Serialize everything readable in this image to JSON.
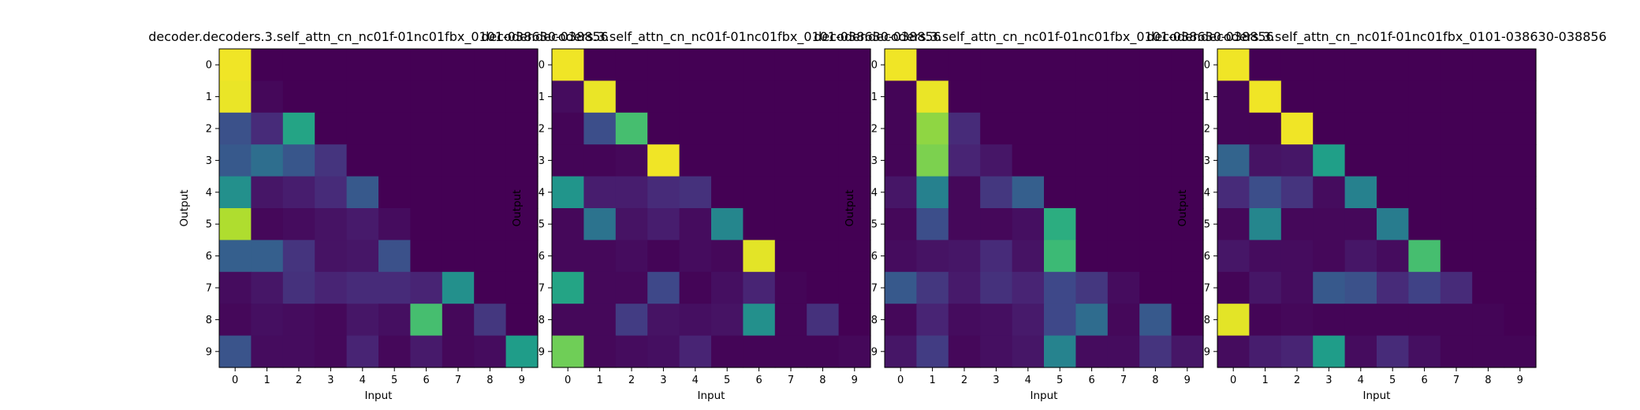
{
  "figure": {
    "background": "#ffffff"
  },
  "colormap": {
    "name": "viridis",
    "stops": [
      "#440154",
      "#482878",
      "#3e4989",
      "#31688e",
      "#26828e",
      "#1f9e89",
      "#35b779",
      "#6ece58",
      "#b5de2b",
      "#fde725"
    ]
  },
  "chart_data": [
    {
      "type": "heatmap",
      "title": "decoder.decoders.3.self_attn_cn_nc01f-01nc01fbx_0101-038630-038856",
      "xlabel": "Input",
      "ylabel": "Output",
      "x_ticks": [
        "0",
        "1",
        "2",
        "3",
        "4",
        "5",
        "6",
        "7",
        "8",
        "9"
      ],
      "y_ticks": [
        "0",
        "1",
        "2",
        "3",
        "4",
        "5",
        "6",
        "7",
        "8",
        "9"
      ],
      "matrix": [
        [
          0.98,
          0,
          0,
          0,
          0,
          0,
          0,
          0,
          0,
          0
        ],
        [
          0.97,
          0.02,
          0,
          0,
          0,
          0,
          0,
          0,
          0,
          0
        ],
        [
          0.25,
          0.12,
          0.58,
          0,
          0,
          0,
          0,
          0,
          0,
          0
        ],
        [
          0.28,
          0.36,
          0.27,
          0.15,
          0,
          0,
          0,
          0,
          0,
          0
        ],
        [
          0.5,
          0.06,
          0.08,
          0.12,
          0.28,
          0,
          0,
          0,
          0,
          0
        ],
        [
          0.88,
          0.02,
          0.03,
          0.05,
          0.07,
          0.03,
          0,
          0,
          0,
          0
        ],
        [
          0.3,
          0.3,
          0.15,
          0.05,
          0.06,
          0.25,
          0,
          0,
          0,
          0
        ],
        [
          0.03,
          0.06,
          0.14,
          0.1,
          0.12,
          0.12,
          0.1,
          0.5,
          0,
          0
        ],
        [
          0.02,
          0.04,
          0.03,
          0.02,
          0.06,
          0.04,
          0.7,
          0.02,
          0.16,
          0
        ],
        [
          0.26,
          0.03,
          0.03,
          0.02,
          0.1,
          0.02,
          0.07,
          0.02,
          0.03,
          0.55
        ]
      ]
    },
    {
      "type": "heatmap",
      "title": "decoder.decoders.3.self_attn_cn_nc01f-01nc01fbx_0101-038630-038856",
      "xlabel": "Input",
      "ylabel": "Output",
      "x_ticks": [
        "0",
        "1",
        "2",
        "3",
        "4",
        "5",
        "6",
        "7",
        "8",
        "9"
      ],
      "y_ticks": [
        "0",
        "1",
        "2",
        "3",
        "4",
        "5",
        "6",
        "7",
        "8",
        "9"
      ],
      "matrix": [
        [
          0.98,
          0,
          0,
          0,
          0,
          0,
          0,
          0,
          0,
          0
        ],
        [
          0.03,
          0.97,
          0,
          0,
          0,
          0,
          0,
          0,
          0,
          0
        ],
        [
          0.01,
          0.24,
          0.7,
          0,
          0,
          0,
          0,
          0,
          0,
          0
        ],
        [
          0.01,
          0.01,
          0.02,
          0.98,
          0,
          0,
          0,
          0,
          0,
          0
        ],
        [
          0.52,
          0.08,
          0.08,
          0.12,
          0.14,
          0,
          0,
          0,
          0,
          0
        ],
        [
          0.02,
          0.38,
          0.05,
          0.08,
          0.03,
          0.46,
          0,
          0,
          0,
          0
        ],
        [
          0.02,
          0.02,
          0.03,
          0.01,
          0.03,
          0.02,
          0.96,
          0,
          0,
          0
        ],
        [
          0.58,
          0.02,
          0.02,
          0.22,
          0.01,
          0.04,
          0.1,
          0.01,
          0,
          0
        ],
        [
          0.02,
          0.02,
          0.18,
          0.05,
          0.04,
          0.05,
          0.5,
          0.01,
          0.14,
          0
        ],
        [
          0.78,
          0.02,
          0.03,
          0.04,
          0.1,
          0.01,
          0.01,
          0.01,
          0.01,
          0.02
        ]
      ]
    },
    {
      "type": "heatmap",
      "title": "decoder.decoders.3.self_attn_cn_nc01f-01nc01fbx_0101-038630-038856",
      "xlabel": "Input",
      "ylabel": "Output",
      "x_ticks": [
        "0",
        "1",
        "2",
        "3",
        "4",
        "5",
        "6",
        "7",
        "8",
        "9"
      ],
      "y_ticks": [
        "0",
        "1",
        "2",
        "3",
        "4",
        "5",
        "6",
        "7",
        "8",
        "9"
      ],
      "matrix": [
        [
          0.98,
          0,
          0,
          0,
          0,
          0,
          0,
          0,
          0,
          0
        ],
        [
          0.01,
          0.97,
          0,
          0,
          0,
          0,
          0,
          0,
          0,
          0
        ],
        [
          0.01,
          0.83,
          0.12,
          0,
          0,
          0,
          0,
          0,
          0,
          0
        ],
        [
          0.01,
          0.8,
          0.1,
          0.06,
          0,
          0,
          0,
          0,
          0,
          0
        ],
        [
          0.06,
          0.44,
          0.02,
          0.16,
          0.3,
          0,
          0,
          0,
          0,
          0
        ],
        [
          0.02,
          0.24,
          0.02,
          0.02,
          0.04,
          0.62,
          0,
          0,
          0,
          0
        ],
        [
          0.03,
          0.05,
          0.06,
          0.12,
          0.05,
          0.68,
          0,
          0,
          0,
          0
        ],
        [
          0.28,
          0.16,
          0.07,
          0.14,
          0.1,
          0.22,
          0.16,
          0.03,
          0,
          0
        ],
        [
          0.02,
          0.1,
          0.03,
          0.04,
          0.07,
          0.22,
          0.35,
          0.02,
          0.28,
          0
        ],
        [
          0.06,
          0.18,
          0.02,
          0.04,
          0.06,
          0.45,
          0.03,
          0.03,
          0.15,
          0.06
        ]
      ]
    },
    {
      "type": "heatmap",
      "title": "decoder.decoders.3.self_attn_cn_nc01f-01nc01fbx_0101-038630-038856",
      "xlabel": "Input",
      "ylabel": "Output",
      "x_ticks": [
        "0",
        "1",
        "2",
        "3",
        "4",
        "5",
        "6",
        "7",
        "8",
        "9"
      ],
      "y_ticks": [
        "0",
        "1",
        "2",
        "3",
        "4",
        "5",
        "6",
        "7",
        "8",
        "9"
      ],
      "matrix": [
        [
          0.98,
          0,
          0,
          0,
          0,
          0,
          0,
          0,
          0,
          0
        ],
        [
          0.01,
          0.98,
          0,
          0,
          0,
          0,
          0,
          0,
          0,
          0
        ],
        [
          0.01,
          0.01,
          0.98,
          0,
          0,
          0,
          0,
          0,
          0,
          0
        ],
        [
          0.32,
          0.05,
          0.06,
          0.56,
          0,
          0,
          0,
          0,
          0,
          0
        ],
        [
          0.12,
          0.24,
          0.15,
          0.03,
          0.44,
          0,
          0,
          0,
          0,
          0
        ],
        [
          0.02,
          0.46,
          0.02,
          0.02,
          0.02,
          0.42,
          0,
          0,
          0,
          0
        ],
        [
          0.06,
          0.03,
          0.03,
          0.02,
          0.06,
          0.03,
          0.7,
          0,
          0,
          0
        ],
        [
          0.01,
          0.06,
          0.03,
          0.28,
          0.25,
          0.12,
          0.2,
          0.12,
          0,
          0
        ],
        [
          0.96,
          0.01,
          0.02,
          0.01,
          0.01,
          0.01,
          0.01,
          0.01,
          0.01,
          0
        ],
        [
          0.03,
          0.08,
          0.1,
          0.55,
          0.03,
          0.12,
          0.04,
          0.01,
          0.01,
          0.01
        ]
      ]
    }
  ]
}
